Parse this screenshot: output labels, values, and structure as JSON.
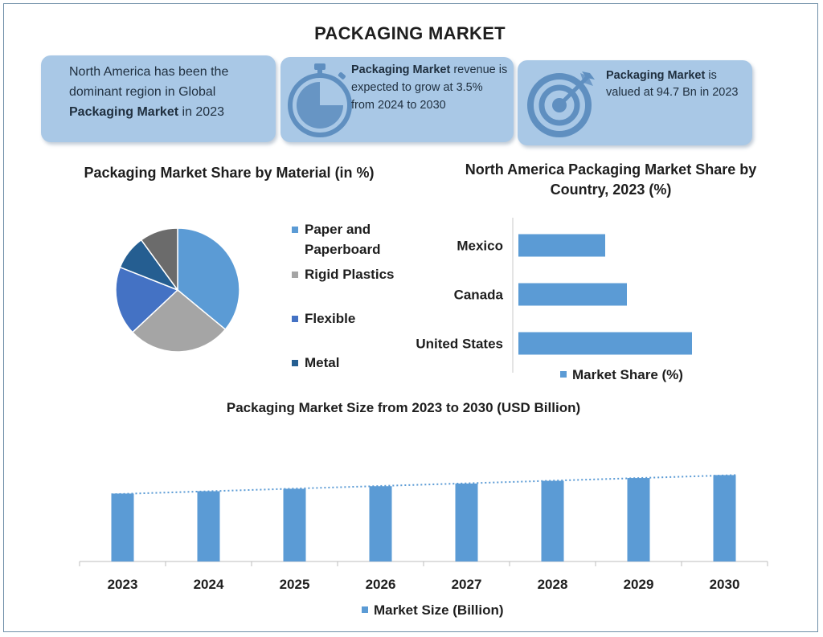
{
  "title": "PACKAGING MARKET",
  "cards": [
    {
      "text_before": "North America has been the dominant region in Global ",
      "bold": "Packaging Market",
      "text_after": " in 2023",
      "icon": "none"
    },
    {
      "bold": "Packaging Market",
      "text_after": " revenue is expected to grow at 3.5% from 2024 to 2030",
      "icon": "stopwatch-icon"
    },
    {
      "bold": "Packaging Market",
      "text_after": " is valued at 94.7 Bn in 2023",
      "icon": "target-icon"
    }
  ],
  "colors": {
    "card_bg": "#a9c8e6",
    "bar": "#5b9bd5",
    "pie": [
      "#5b9bd5",
      "#a5a5a5",
      "#4472c4",
      "#255e91",
      "#6b6b6b"
    ],
    "icon": "#5f8fc0"
  },
  "chart_data": [
    {
      "type": "pie",
      "title": "Packaging Market Share by Material (in %)",
      "labels": [
        "Paper and Paperboard",
        "Rigid Plastics",
        "Flexible",
        "Metal",
        ""
      ],
      "legend": [
        "Paper and Paperboard",
        "Rigid Plastics",
        "Flexible",
        "Metal"
      ],
      "values": [
        36,
        27,
        18,
        9,
        10
      ],
      "legend_position": "right"
    },
    {
      "type": "bar",
      "orientation": "horizontal",
      "title": "North America Packaging Market Share by Country, 2023 (%)",
      "categories": [
        "Mexico",
        "Canada",
        "United States"
      ],
      "series": [
        {
          "name": "Market Share (%)",
          "values": [
            20,
            25,
            40
          ]
        }
      ],
      "xlim": [
        0,
        50
      ],
      "legend_position": "bottom"
    },
    {
      "type": "bar",
      "title": "Packaging Market Size from 2023 to 2030 (USD Billion)",
      "categories": [
        "2023",
        "2024",
        "2025",
        "2026",
        "2027",
        "2028",
        "2029",
        "2030"
      ],
      "series": [
        {
          "name": "Market Size (Billion)",
          "values": [
            94.7,
            98.0,
            101.4,
            105.0,
            108.7,
            112.5,
            116.4,
            120.5
          ]
        }
      ],
      "ylim": [
        0,
        140
      ],
      "trendline": "dotted linear",
      "legend_position": "bottom"
    }
  ]
}
